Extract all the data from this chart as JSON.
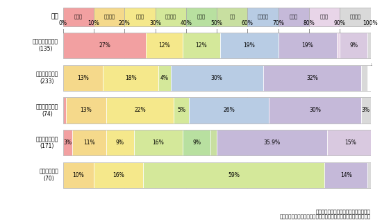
{
  "legend_labels": [
    "滋賀県",
    "京都府下",
    "京都市",
    "大阪府下",
    "大阪市",
    "堺市",
    "兵庫県下",
    "神戸市",
    "奈良県",
    "和歌山県"
  ],
  "legend_colors": [
    "#f2a0a1",
    "#f5d98b",
    "#f5e88b",
    "#d4e89a",
    "#b8e0a0",
    "#c8dfa0",
    "#b8cce4",
    "#c5b9d9",
    "#e8d5e8",
    "#d9d9d9"
  ],
  "row_labels": [
    "第二名神高速道路\n(135)",
    "阪神高速湾岸線\n(233)",
    "阪神高速神戸線\n(74)",
    "京奈和自動車道\n(171)",
    "第二京阪道路\n(70)"
  ],
  "rows_data": [
    [
      [
        27,
        "#f2a0a1",
        "27%"
      ],
      [
        12,
        "#f5e88b",
        "12%"
      ],
      [
        12,
        "#d4e89a",
        "12%"
      ],
      [
        19,
        "#b8cce4",
        "19%"
      ],
      [
        19,
        "#c5b9d9",
        "19%"
      ],
      [
        1,
        "#e8d5e8",
        "1%"
      ],
      [
        9,
        "#d9c9e0",
        "9%"
      ],
      [
        1,
        "#d9d9d9",
        "1%"
      ]
    ],
    [
      [
        13,
        "#f5d98b",
        "13%"
      ],
      [
        18,
        "#f5e88b",
        "18%"
      ],
      [
        4,
        "#d4e89a",
        "4%"
      ],
      [
        30,
        "#b8cce4",
        "30%"
      ],
      [
        32,
        "#c5b9d9",
        "32%"
      ],
      [
        2,
        "#d9d9d9",
        "2%"
      ]
    ],
    [
      [
        1,
        "#f2a0a1",
        "1%"
      ],
      [
        13,
        "#f5d98b",
        "13%"
      ],
      [
        22,
        "#f5e88b",
        "22%"
      ],
      [
        5,
        "#d4e89a",
        "5%"
      ],
      [
        26,
        "#b8cce4",
        "26%"
      ],
      [
        30,
        "#c5b9d9",
        "30%"
      ],
      [
        3,
        "#d9d9d9",
        "3%"
      ]
    ],
    [
      [
        3,
        "#f2a0a1",
        "3%"
      ],
      [
        11,
        "#f5d98b",
        "11%"
      ],
      [
        9,
        "#f5e88b",
        "9%"
      ],
      [
        16,
        "#d4e89a",
        "16%"
      ],
      [
        9,
        "#b8e0a0",
        "9%"
      ],
      [
        2,
        "#c8dfa0",
        "2%"
      ],
      [
        35.9,
        "#c5b9d9",
        "35.9%"
      ],
      [
        15,
        "#d9c9e0",
        "15%"
      ]
    ],
    [
      [
        10,
        "#f5d98b",
        "10%"
      ],
      [
        16,
        "#f5e88b",
        "16%"
      ],
      [
        59,
        "#d4e89a",
        "59%"
      ],
      [
        14,
        "#c5b9d9",
        "14%"
      ],
      [
        1,
        "#d9d9d9",
        "1%"
      ]
    ]
  ],
  "note": "資料：物流基礎調査（意向アンケート）\n（高速道路の整備ニーズを回答した事業所・企業のサンプル集計）"
}
